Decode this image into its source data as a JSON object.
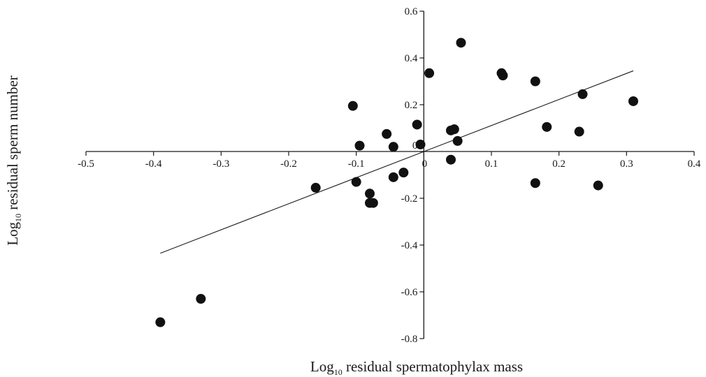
{
  "chart_data": {
    "type": "scatter",
    "title": "",
    "xlabel": {
      "prefix": "Log",
      "subscript": "10",
      "rest": " residual spermatophylax mass"
    },
    "ylabel": {
      "prefix": "Log",
      "subscript": "10",
      "rest": " residual sperm number"
    },
    "xlim": [
      -0.5,
      0.4
    ],
    "ylim": [
      -0.8,
      0.6
    ],
    "x_ticks": [
      -0.5,
      -0.4,
      -0.3,
      -0.2,
      -0.1,
      0,
      0.1,
      0.2,
      0.3,
      0.4
    ],
    "x_tick_labels": [
      "-0.5",
      "-0.4",
      "-0.3",
      "-0.2",
      "-0.1",
      "0",
      "0.1",
      "0.2",
      "0.3",
      "0.4"
    ],
    "y_ticks": [
      -0.8,
      -0.6,
      -0.4,
      -0.2,
      0,
      0.2,
      0.4,
      0.6
    ],
    "y_tick_labels": [
      "-0.8",
      "-0.6",
      "-0.4",
      "-0.2",
      "0",
      "0.2",
      "0.4",
      "0.6"
    ],
    "axes_cross_at_origin": true,
    "grid": false,
    "legend": "none",
    "marker_color": "#111111",
    "series": [
      {
        "points": [
          {
            "x": -0.39,
            "y": -0.73
          },
          {
            "x": -0.33,
            "y": -0.63
          },
          {
            "x": -0.16,
            "y": -0.155
          },
          {
            "x": -0.105,
            "y": 0.195
          },
          {
            "x": -0.1,
            "y": -0.13
          },
          {
            "x": -0.095,
            "y": 0.025
          },
          {
            "x": -0.08,
            "y": -0.18
          },
          {
            "x": -0.08,
            "y": -0.22
          },
          {
            "x": -0.075,
            "y": -0.22
          },
          {
            "x": -0.055,
            "y": 0.075
          },
          {
            "x": -0.045,
            "y": 0.02
          },
          {
            "x": -0.045,
            "y": -0.11
          },
          {
            "x": -0.03,
            "y": -0.09
          },
          {
            "x": -0.01,
            "y": 0.115
          },
          {
            "x": -0.005,
            "y": 0.03
          },
          {
            "x": 0.008,
            "y": 0.335
          },
          {
            "x": 0.04,
            "y": 0.09
          },
          {
            "x": 0.04,
            "y": -0.035
          },
          {
            "x": 0.045,
            "y": 0.095
          },
          {
            "x": 0.05,
            "y": 0.045
          },
          {
            "x": 0.055,
            "y": 0.465
          },
          {
            "x": 0.115,
            "y": 0.335
          },
          {
            "x": 0.117,
            "y": 0.325
          },
          {
            "x": 0.165,
            "y": 0.3
          },
          {
            "x": 0.165,
            "y": -0.135
          },
          {
            "x": 0.182,
            "y": 0.105
          },
          {
            "x": 0.23,
            "y": 0.085
          },
          {
            "x": 0.235,
            "y": 0.245
          },
          {
            "x": 0.258,
            "y": -0.145
          },
          {
            "x": 0.31,
            "y": 0.215
          }
        ]
      }
    ],
    "fit_line": {
      "type": "line",
      "from": {
        "x": -0.39,
        "y": -0.435
      },
      "to": {
        "x": 0.31,
        "y": 0.345
      }
    }
  }
}
